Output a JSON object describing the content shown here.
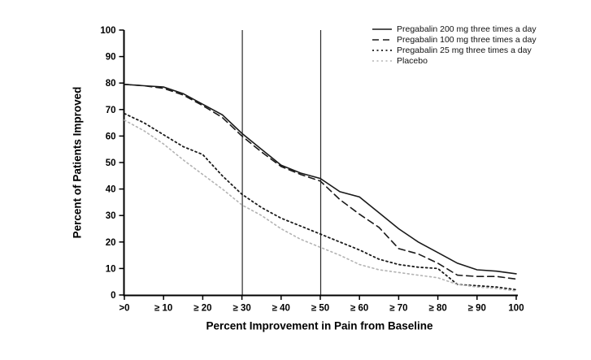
{
  "figure": {
    "background": "#ffffff",
    "axis_color": "#000000"
  },
  "chart_data": {
    "type": "line",
    "title": "",
    "xlabel": "Percent Improvement in Pain from Baseline",
    "ylabel": "Percent of Patients Improved",
    "xlim": [
      0,
      100
    ],
    "ylim": [
      0,
      100
    ],
    "grid": false,
    "legend_position": "top-right",
    "x_tick_values": [
      0,
      10,
      20,
      30,
      40,
      50,
      60,
      70,
      80,
      90,
      100
    ],
    "x_tick_labels": [
      ">0",
      "≥ 10",
      "≥ 20",
      "≥ 30",
      "≥ 40",
      "≥ 50",
      "≥ 60",
      "≥ 70",
      "≥ 80",
      "≥ 90",
      "100"
    ],
    "y_tick_values": [
      0,
      10,
      20,
      30,
      40,
      50,
      60,
      70,
      80,
      90,
      100
    ],
    "y_tick_labels": [
      "0",
      "10",
      "20",
      "30",
      "40",
      "50",
      "60",
      "70",
      "80",
      "90",
      "100"
    ],
    "reference_lines_x": [
      30,
      50
    ],
    "x": [
      0,
      5,
      10,
      15,
      20,
      25,
      30,
      35,
      40,
      45,
      50,
      55,
      60,
      65,
      70,
      75,
      80,
      85,
      90,
      95,
      100
    ],
    "series": [
      {
        "name": "Pregabalin 200 mg three times a day",
        "style": "solid",
        "color": "#1a1a1a",
        "stroke_width": 1.6,
        "values": [
          79.5,
          79,
          78.5,
          76,
          72,
          68,
          61,
          55,
          49,
          46,
          44,
          39,
          37,
          31,
          25,
          20,
          16,
          12,
          9.5,
          9,
          8
        ]
      },
      {
        "name": "Pregabalin 100 mg three times a day",
        "style": "dashed",
        "color": "#1a1a1a",
        "stroke_width": 1.6,
        "values": [
          79.5,
          79,
          78,
          75.5,
          71.5,
          67,
          60,
          54,
          48.5,
          45.5,
          43,
          36,
          30.5,
          25.5,
          17.5,
          15.5,
          12,
          7.5,
          7,
          7,
          6
        ]
      },
      {
        "name": "Pregabalin 25 mg three times a day",
        "style": "dotted",
        "color": "#1a1a1a",
        "stroke_width": 1.8,
        "values": [
          68.5,
          65,
          60.5,
          56,
          53,
          45,
          38,
          33,
          29,
          26,
          23,
          20,
          17,
          13.5,
          11.5,
          10.5,
          10,
          4,
          3.5,
          3,
          2
        ]
      },
      {
        "name": "Placebo",
        "style": "dotted",
        "color": "#b3b3b3",
        "stroke_width": 1.6,
        "values": [
          66,
          62,
          57,
          51,
          45.5,
          40,
          34,
          30,
          25,
          21,
          18,
          15,
          11.5,
          9.5,
          8.5,
          7.5,
          6.5,
          4,
          3,
          2.5,
          1.5
        ]
      }
    ]
  }
}
